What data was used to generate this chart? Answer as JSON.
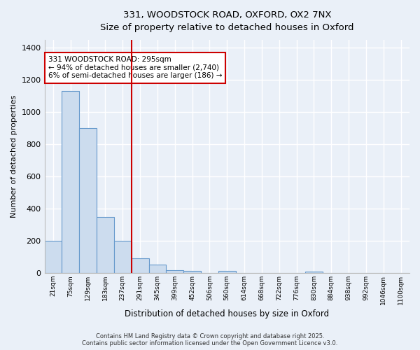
{
  "title1": "331, WOODSTOCK ROAD, OXFORD, OX2 7NX",
  "title2": "Size of property relative to detached houses in Oxford",
  "xlabel": "Distribution of detached houses by size in Oxford",
  "ylabel": "Number of detached properties",
  "bar_color": "#ccdcee",
  "bar_edge_color": "#6699cc",
  "vline_color": "#cc0000",
  "annotation_text": "331 WOODSTOCK ROAD: 295sqm\n← 94% of detached houses are smaller (2,740)\n6% of semi-detached houses are larger (186) →",
  "annotation_box_color": "#ffffff",
  "annotation_box_edge": "#cc0000",
  "categories": [
    "21sqm",
    "75sqm",
    "129sqm",
    "183sqm",
    "237sqm",
    "291sqm",
    "345sqm",
    "399sqm",
    "452sqm",
    "506sqm",
    "560sqm",
    "614sqm",
    "668sqm",
    "722sqm",
    "776sqm",
    "830sqm",
    "884sqm",
    "938sqm",
    "992sqm",
    "1046sqm",
    "1100sqm"
  ],
  "values": [
    200,
    1130,
    900,
    350,
    200,
    90,
    55,
    20,
    15,
    0,
    12,
    0,
    0,
    0,
    0,
    10,
    0,
    0,
    0,
    0,
    0
  ],
  "ylim": [
    0,
    1450
  ],
  "yticks": [
    0,
    200,
    400,
    600,
    800,
    1000,
    1200,
    1400
  ],
  "background_color": "#eaf0f8",
  "grid_color": "#ffffff",
  "footer_text": "Contains HM Land Registry data © Crown copyright and database right 2025.\nContains public sector information licensed under the Open Government Licence v3.0.",
  "vline_bin_index": 5
}
